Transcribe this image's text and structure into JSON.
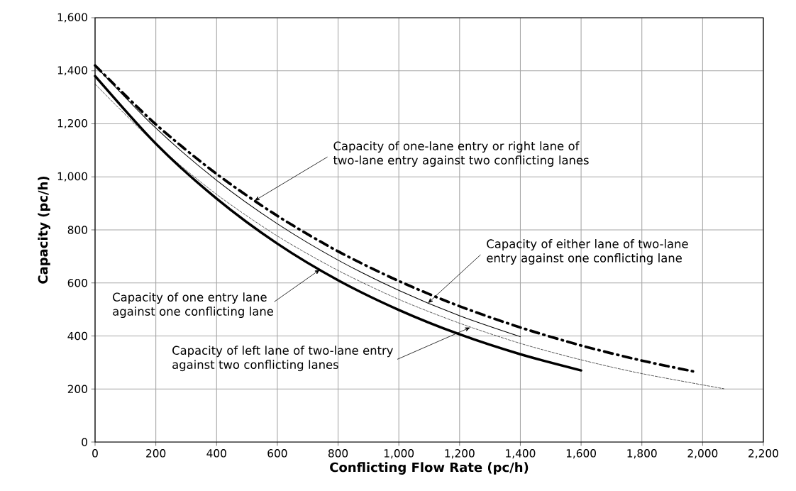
{
  "chart_data": {
    "type": "line",
    "xlabel": "Conflicting Flow Rate (pc/h)",
    "ylabel": "Capacity (pc/h)",
    "xlim": [
      0,
      2200
    ],
    "ylim": [
      0,
      1600
    ],
    "xticks": [
      0,
      200,
      400,
      600,
      800,
      {
        "value": 1000,
        "label": "1,000"
      },
      {
        "value": 1200,
        "label": "1,200"
      },
      {
        "value": 1400,
        "label": "1,400"
      },
      {
        "value": 1600,
        "label": "1,600"
      },
      {
        "value": 1800,
        "label": "1,800"
      },
      {
        "value": 2000,
        "label": "2,000"
      },
      {
        "value": 2200,
        "label": "2,200"
      }
    ],
    "yticks": [
      0,
      200,
      400,
      600,
      800,
      {
        "value": 1000,
        "label": "1,000"
      },
      {
        "value": 1200,
        "label": "1,200"
      },
      {
        "value": 1400,
        "label": "1,400"
      },
      {
        "value": 1600,
        "label": "1,600"
      }
    ],
    "grid": true,
    "series": [
      {
        "color": "#000000",
        "line_style": "solid",
        "x": [
          0,
          200,
          400,
          600,
          800,
          1000,
          1200,
          1400,
          1600
        ],
        "values": [
          1380,
          1125,
          918,
          748,
          610,
          498,
          406,
          331,
          270
        ]
      },
      {
        "color": "#000000",
        "line_style": "dashdot",
        "x": [
          0,
          200,
          400,
          600,
          800,
          1000,
          1200,
          1400,
          1600,
          1800,
          1980
        ],
        "values": [
          1420,
          1198,
          1011,
          853,
          719,
          607,
          512,
          432,
          364,
          307,
          264
        ]
      },
      {
        "color": "#000000",
        "line_style": "solid",
        "x": [
          0,
          200,
          400,
          600,
          800,
          1000,
          1200,
          1400
        ],
        "values": [
          1420,
          1184,
          987,
          823,
          686,
          572,
          476,
          397
        ]
      },
      {
        "color": "#000000",
        "line_style": "dashed",
        "x": [
          0,
          200,
          400,
          600,
          800,
          1000,
          1200,
          1400,
          1600,
          1800,
          2070
        ],
        "values": [
          1350,
          1123,
          934,
          777,
          647,
          538,
          448,
          372,
          310,
          258,
          201
        ]
      }
    ],
    "annotations": [
      {
        "text": "Capacity of one-lane entry or right lane of two-lane entry against two conflicting lanes",
        "x": 525,
        "y": 910
      },
      {
        "text": "Capacity of either lane of two-lane entry against one conflicting lane",
        "x": 1096,
        "y": 524
      },
      {
        "text": "Capacity of one entry lane against one conflicting lane",
        "x": 740,
        "y": 650
      },
      {
        "text": "Capacity of left lane of two-lane entry against two conflicting lanes",
        "x": 1235,
        "y": 432
      }
    ]
  }
}
